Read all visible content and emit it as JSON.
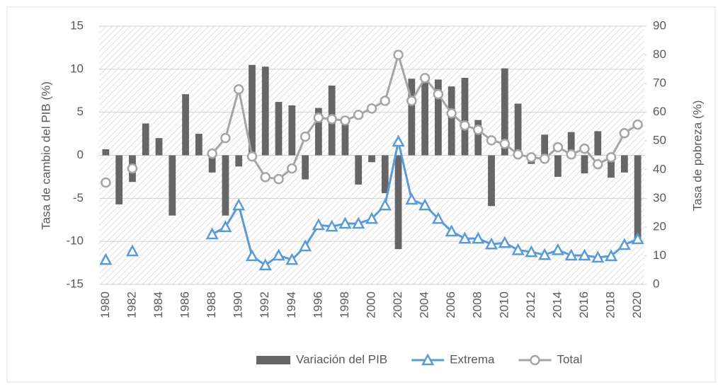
{
  "chart_data": {
    "type": "bar-line",
    "y_label": "Tasa de cambio del PIB (%)",
    "y2_label": "Tasa de pobreza (%)",
    "categories": [
      "1980",
      null,
      "1982",
      null,
      "1984",
      null,
      "1986",
      null,
      "1988",
      null,
      "1990",
      null,
      "1992",
      null,
      "1994",
      null,
      "1996",
      null,
      "1998",
      null,
      "2000",
      null,
      "2002",
      null,
      "2004",
      null,
      "2006",
      null,
      "2008",
      null,
      "2010",
      null,
      "2012",
      null,
      "2014",
      null,
      "2016",
      null,
      "2018",
      null,
      "2020"
    ],
    "series": [
      {
        "name": "Variación del PIB",
        "type": "bar",
        "color": "#666666",
        "values": [
          0.7,
          -5.7,
          -3.1,
          3.7,
          2.0,
          -7.0,
          7.1,
          2.5,
          -2.0,
          -7.0,
          -1.3,
          10.5,
          10.3,
          6.2,
          5.8,
          -2.8,
          5.5,
          8.1,
          3.8,
          -3.4,
          -0.8,
          -4.4,
          -10.9,
          8.9,
          9.0,
          8.8,
          8.0,
          9.0,
          4.1,
          -5.9,
          10.1,
          6.0,
          -1.0,
          2.4,
          -2.5,
          2.7,
          -2.1,
          2.8,
          -2.6,
          -2.0,
          -9.9
        ]
      },
      {
        "name": "Extrema",
        "type": "line",
        "axis": "y2",
        "color": "#5b9bd5",
        "marker": "triangle",
        "values": [
          8.6,
          null,
          11.6,
          null,
          null,
          null,
          null,
          null,
          17.5,
          20.0,
          27.6,
          9.9,
          6.7,
          10.1,
          8.6,
          13.3,
          20.7,
          20.2,
          21.2,
          21.2,
          22.9,
          27.6,
          49.8,
          29.6,
          27.6,
          22.9,
          18.5,
          16.0,
          16.0,
          14.0,
          14.5,
          12.0,
          11.3,
          10.3,
          12.0,
          10.1,
          10.1,
          9.4,
          9.9,
          13.8,
          15.8
        ]
      },
      {
        "name": "Total",
        "type": "line",
        "axis": "y2",
        "color": "#a5a5a5",
        "marker": "circle",
        "values": [
          35.5,
          null,
          40.4,
          null,
          null,
          null,
          null,
          null,
          45.6,
          51.0,
          68.0,
          44.6,
          37.4,
          36.7,
          40.4,
          51.5,
          58.1,
          57.6,
          57.1,
          59.1,
          61.3,
          64.0,
          80.0,
          64.0,
          71.9,
          66.3,
          59.6,
          55.4,
          53.9,
          50.2,
          49.0,
          45.3,
          44.3,
          43.8,
          47.8,
          45.3,
          47.3,
          41.9,
          44.3,
          52.7,
          55.7
        ]
      }
    ],
    "ylim": [
      -15,
      15
    ],
    "yticks": [
      -15,
      -10,
      -5,
      0,
      5,
      10,
      15
    ],
    "y2lim": [
      0,
      90
    ],
    "y2ticks": [
      0,
      10,
      20,
      30,
      40,
      50,
      60,
      70,
      80,
      90
    ],
    "grid": true,
    "legend": "bottom"
  }
}
